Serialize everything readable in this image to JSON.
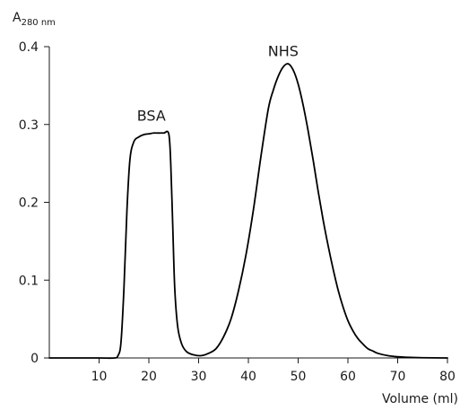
{
  "chart_data": {
    "type": "line",
    "title": "",
    "ylabel_main": "A",
    "ylabel_sub": "280 nm",
    "xlabel": "Volume (ml)",
    "xlim": [
      0,
      80
    ],
    "ylim": [
      0,
      0.4
    ],
    "x_ticks": [
      10,
      20,
      30,
      40,
      50,
      60,
      70,
      80
    ],
    "y_ticks": [
      0,
      0.1,
      0.2,
      0.3,
      0.4
    ],
    "y_tick_labels": [
      "0",
      "0.1",
      "0.2",
      "0.3",
      "0.4"
    ],
    "grid": false,
    "legend": "none",
    "annotations": [
      {
        "text": "BSA",
        "x": 20.5,
        "y": 0.305
      },
      {
        "text": "NHS",
        "x": 47,
        "y": 0.388
      }
    ],
    "series": [
      {
        "x": [
          0,
          5,
          10,
          13,
          13.8,
          14.4,
          15,
          15.6,
          16.2,
          17,
          18,
          19,
          20,
          21,
          22,
          23,
          24,
          24.4,
          24.8,
          25.2,
          25.8,
          26.6,
          27.6,
          29,
          30.5,
          32,
          33.5,
          35,
          36.5,
          38,
          39.5,
          41,
          42.5,
          44,
          45,
          46,
          47,
          48,
          49,
          50,
          51,
          52,
          53,
          54,
          55,
          56,
          57,
          58,
          59,
          60,
          61,
          62,
          63,
          64,
          65,
          66,
          68,
          70,
          72,
          75,
          80
        ],
        "y": [
          0,
          0,
          0,
          0,
          0.003,
          0.02,
          0.09,
          0.19,
          0.255,
          0.278,
          0.284,
          0.287,
          0.288,
          0.289,
          0.289,
          0.289,
          0.288,
          0.25,
          0.17,
          0.09,
          0.04,
          0.018,
          0.008,
          0.004,
          0.003,
          0.006,
          0.012,
          0.027,
          0.05,
          0.086,
          0.132,
          0.19,
          0.258,
          0.32,
          0.344,
          0.362,
          0.374,
          0.378,
          0.37,
          0.352,
          0.325,
          0.292,
          0.255,
          0.215,
          0.178,
          0.145,
          0.115,
          0.088,
          0.066,
          0.048,
          0.035,
          0.025,
          0.018,
          0.012,
          0.009,
          0.006,
          0.003,
          0.0015,
          0.0008,
          0.0003,
          0
        ]
      }
    ]
  }
}
